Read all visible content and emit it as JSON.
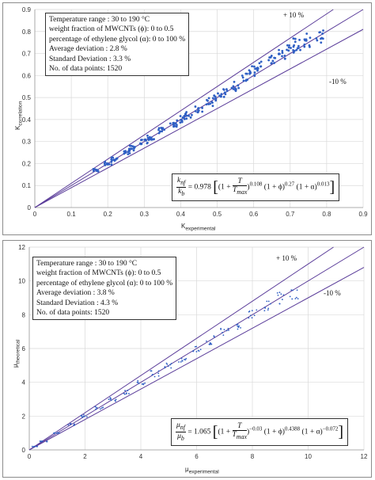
{
  "chart_data": [
    {
      "type": "scatter",
      "xlabel": "K",
      "xlabel_sub": "experimental",
      "ylabel": "K",
      "ylabel_sub": "correlation",
      "xlim": [
        0,
        0.9
      ],
      "ylim": [
        0,
        0.9
      ],
      "xticks": [
        "0",
        "0.1",
        "0.2",
        "0.3",
        "0.4",
        "0.5",
        "0.6",
        "0.7",
        "0.8",
        "0.9"
      ],
      "yticks": [
        "0",
        "0.1",
        "0.2",
        "0.3",
        "0.4",
        "0.5",
        "0.6",
        "0.7",
        "0.8",
        "0.9"
      ],
      "grid": true,
      "reference_lines": [
        {
          "label": "+ 10 %",
          "slope": 1.1
        },
        {
          "label": "",
          "slope": 1.0
        },
        {
          "label": "-10 %",
          "slope": 0.9
        }
      ],
      "info_box": [
        "Temperature range : 30 to 190 °C",
        "weight fraction of MWCNTs (ϕ): 0 to 0.5",
        "percentage of ethylene glycol (α): 0 to 100 %",
        "Average deviation : 2.8 %",
        "Standard Deviation : 3.3 %",
        "No. of data points: 1520"
      ],
      "equation": {
        "lhs_num": "k",
        "lhs_num_sub": "nf",
        "lhs_den": "k",
        "lhs_den_sub": "b",
        "coef": "= 0.978",
        "t_exp": "0.108",
        "phi_exp": "0.27",
        "alpha_exp": "0.013"
      },
      "x_range_points": [
        0.17,
        0.79
      ],
      "series": [
        {
          "x": [
            0.17,
            0.2,
            0.22,
            0.25,
            0.27,
            0.3,
            0.32,
            0.35,
            0.38,
            0.4,
            0.42,
            0.45,
            0.48,
            0.5,
            0.52,
            0.55,
            0.58,
            0.6,
            0.62,
            0.65,
            0.68,
            0.7,
            0.72,
            0.75,
            0.78
          ],
          "y": [
            0.17,
            0.2,
            0.22,
            0.25,
            0.27,
            0.3,
            0.32,
            0.35,
            0.37,
            0.4,
            0.42,
            0.45,
            0.48,
            0.5,
            0.52,
            0.55,
            0.6,
            0.62,
            0.64,
            0.67,
            0.7,
            0.72,
            0.74,
            0.76,
            0.78
          ]
        }
      ]
    },
    {
      "type": "scatter",
      "xlabel": "μ",
      "xlabel_sub": "experimental",
      "ylabel": "μ",
      "ylabel_sub": "theoretical",
      "xlim": [
        0,
        12
      ],
      "ylim": [
        0,
        12
      ],
      "xticks": [
        "0",
        "2",
        "4",
        "6",
        "8",
        "10",
        "12"
      ],
      "yticks": [
        "0",
        "2",
        "4",
        "6",
        "8",
        "10",
        "12"
      ],
      "grid": true,
      "reference_lines": [
        {
          "label": "+ 10 %",
          "slope": 1.1
        },
        {
          "label": "",
          "slope": 1.0
        },
        {
          "label": "-10 %",
          "slope": 0.9
        }
      ],
      "info_box": [
        "Temperature range : 30 to 190 °C",
        "weight fraction of MWCNTs (ϕ): 0 to 0.5",
        "percentage of ethylene glycol (α): 0 to 100 %",
        "Average deviation : 3.8 %",
        "Standard Deviation : 4.3 %",
        "No. of data points: 1520"
      ],
      "equation": {
        "lhs_num": "μ",
        "lhs_num_sub": "nf",
        "lhs_den": "μ",
        "lhs_den_sub": "b",
        "coef": "= 1.065",
        "t_exp": "−0.03",
        "phi_exp": "0.4388",
        "alpha_exp": "−0.072"
      },
      "x_range_points": [
        0,
        9.8
      ],
      "series": [
        {
          "x": [
            0.2,
            0.5,
            1,
            1.5,
            2,
            2.5,
            3,
            3.5,
            4,
            4.5,
            5,
            5.5,
            6,
            6.5,
            7,
            7.5,
            8,
            8.5,
            9,
            9.5
          ],
          "y": [
            0.2,
            0.5,
            1,
            1.5,
            2,
            2.5,
            3,
            3.4,
            4,
            4.5,
            5,
            5.4,
            6,
            6.5,
            7,
            7.4,
            8,
            8.5,
            9,
            9.3
          ]
        }
      ]
    }
  ]
}
